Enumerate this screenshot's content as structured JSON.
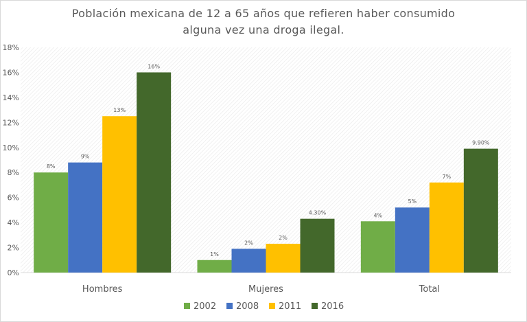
{
  "chart_data": {
    "type": "bar",
    "title": "Población mexicana de 12 a 65 años que refieren haber consumido alguna vez una droga ilegal.",
    "title_lines": [
      "Población mexicana de 12 a 65 años que refieren haber consumido",
      "alguna vez una droga ilegal."
    ],
    "categories": [
      "Hombres",
      "Mujeres",
      "Total"
    ],
    "series": [
      {
        "name": "2002",
        "color": "#70ad47",
        "values": [
          8,
          1,
          4.1
        ],
        "labels": [
          "8%",
          "1%",
          "4%"
        ]
      },
      {
        "name": "2008",
        "color": "#4472c4",
        "values": [
          8.8,
          1.9,
          5.2
        ],
        "labels": [
          "9%",
          "2%",
          "5%"
        ]
      },
      {
        "name": "2011",
        "color": "#ffc000",
        "values": [
          12.5,
          2.3,
          7.2
        ],
        "labels": [
          "13%",
          "2%",
          "7%"
        ]
      },
      {
        "name": "2016",
        "color": "#43682b",
        "values": [
          16,
          4.3,
          9.9
        ],
        "labels": [
          "16%",
          "4.30%",
          "9.90%"
        ]
      }
    ],
    "ylim": [
      0,
      18
    ],
    "yticks": [
      "0%",
      "2%",
      "4%",
      "6%",
      "8%",
      "10%",
      "12%",
      "14%",
      "16%",
      "18%"
    ],
    "xlabel": "",
    "ylabel": "",
    "grid": false,
    "legend": "bottom"
  }
}
